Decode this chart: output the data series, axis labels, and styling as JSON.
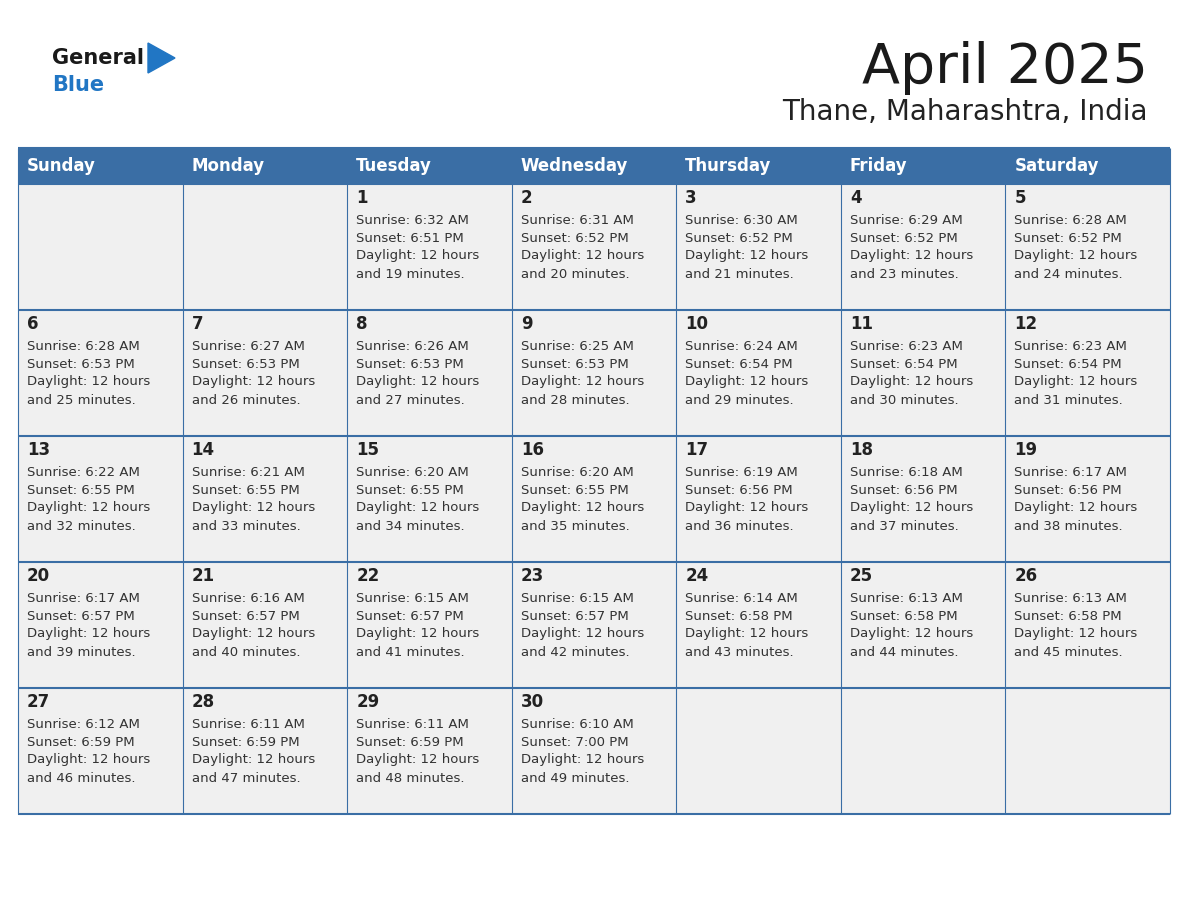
{
  "title": "April 2025",
  "subtitle": "Thane, Maharashtra, India",
  "days_of_week": [
    "Sunday",
    "Monday",
    "Tuesday",
    "Wednesday",
    "Thursday",
    "Friday",
    "Saturday"
  ],
  "header_bg_color": "#3A6EA5",
  "header_text_color": "#FFFFFF",
  "cell_bg_color": "#F0F0F0",
  "cell_bg_empty_color": "#ECECEC",
  "cell_border_color": "#3A6EA5",
  "day_number_color": "#222222",
  "day_info_color": "#333333",
  "title_color": "#1a1a1a",
  "subtitle_color": "#222222",
  "logo_general_color": "#1a1a1a",
  "logo_blue_color": "#2176C4",
  "bg_color": "#FFFFFF",
  "calendar_data": [
    [
      {
        "day": "",
        "sunrise": "",
        "sunset": "",
        "daylight": ""
      },
      {
        "day": "",
        "sunrise": "",
        "sunset": "",
        "daylight": ""
      },
      {
        "day": "1",
        "sunrise": "6:32 AM",
        "sunset": "6:51 PM",
        "daylight": "12 hours and 19 minutes."
      },
      {
        "day": "2",
        "sunrise": "6:31 AM",
        "sunset": "6:52 PM",
        "daylight": "12 hours and 20 minutes."
      },
      {
        "day": "3",
        "sunrise": "6:30 AM",
        "sunset": "6:52 PM",
        "daylight": "12 hours and 21 minutes."
      },
      {
        "day": "4",
        "sunrise": "6:29 AM",
        "sunset": "6:52 PM",
        "daylight": "12 hours and 23 minutes."
      },
      {
        "day": "5",
        "sunrise": "6:28 AM",
        "sunset": "6:52 PM",
        "daylight": "12 hours and 24 minutes."
      }
    ],
    [
      {
        "day": "6",
        "sunrise": "6:28 AM",
        "sunset": "6:53 PM",
        "daylight": "12 hours and 25 minutes."
      },
      {
        "day": "7",
        "sunrise": "6:27 AM",
        "sunset": "6:53 PM",
        "daylight": "12 hours and 26 minutes."
      },
      {
        "day": "8",
        "sunrise": "6:26 AM",
        "sunset": "6:53 PM",
        "daylight": "12 hours and 27 minutes."
      },
      {
        "day": "9",
        "sunrise": "6:25 AM",
        "sunset": "6:53 PM",
        "daylight": "12 hours and 28 minutes."
      },
      {
        "day": "10",
        "sunrise": "6:24 AM",
        "sunset": "6:54 PM",
        "daylight": "12 hours and 29 minutes."
      },
      {
        "day": "11",
        "sunrise": "6:23 AM",
        "sunset": "6:54 PM",
        "daylight": "12 hours and 30 minutes."
      },
      {
        "day": "12",
        "sunrise": "6:23 AM",
        "sunset": "6:54 PM",
        "daylight": "12 hours and 31 minutes."
      }
    ],
    [
      {
        "day": "13",
        "sunrise": "6:22 AM",
        "sunset": "6:55 PM",
        "daylight": "12 hours and 32 minutes."
      },
      {
        "day": "14",
        "sunrise": "6:21 AM",
        "sunset": "6:55 PM",
        "daylight": "12 hours and 33 minutes."
      },
      {
        "day": "15",
        "sunrise": "6:20 AM",
        "sunset": "6:55 PM",
        "daylight": "12 hours and 34 minutes."
      },
      {
        "day": "16",
        "sunrise": "6:20 AM",
        "sunset": "6:55 PM",
        "daylight": "12 hours and 35 minutes."
      },
      {
        "day": "17",
        "sunrise": "6:19 AM",
        "sunset": "6:56 PM",
        "daylight": "12 hours and 36 minutes."
      },
      {
        "day": "18",
        "sunrise": "6:18 AM",
        "sunset": "6:56 PM",
        "daylight": "12 hours and 37 minutes."
      },
      {
        "day": "19",
        "sunrise": "6:17 AM",
        "sunset": "6:56 PM",
        "daylight": "12 hours and 38 minutes."
      }
    ],
    [
      {
        "day": "20",
        "sunrise": "6:17 AM",
        "sunset": "6:57 PM",
        "daylight": "12 hours and 39 minutes."
      },
      {
        "day": "21",
        "sunrise": "6:16 AM",
        "sunset": "6:57 PM",
        "daylight": "12 hours and 40 minutes."
      },
      {
        "day": "22",
        "sunrise": "6:15 AM",
        "sunset": "6:57 PM",
        "daylight": "12 hours and 41 minutes."
      },
      {
        "day": "23",
        "sunrise": "6:15 AM",
        "sunset": "6:57 PM",
        "daylight": "12 hours and 42 minutes."
      },
      {
        "day": "24",
        "sunrise": "6:14 AM",
        "sunset": "6:58 PM",
        "daylight": "12 hours and 43 minutes."
      },
      {
        "day": "25",
        "sunrise": "6:13 AM",
        "sunset": "6:58 PM",
        "daylight": "12 hours and 44 minutes."
      },
      {
        "day": "26",
        "sunrise": "6:13 AM",
        "sunset": "6:58 PM",
        "daylight": "12 hours and 45 minutes."
      }
    ],
    [
      {
        "day": "27",
        "sunrise": "6:12 AM",
        "sunset": "6:59 PM",
        "daylight": "12 hours and 46 minutes."
      },
      {
        "day": "28",
        "sunrise": "6:11 AM",
        "sunset": "6:59 PM",
        "daylight": "12 hours and 47 minutes."
      },
      {
        "day": "29",
        "sunrise": "6:11 AM",
        "sunset": "6:59 PM",
        "daylight": "12 hours and 48 minutes."
      },
      {
        "day": "30",
        "sunrise": "6:10 AM",
        "sunset": "7:00 PM",
        "daylight": "12 hours and 49 minutes."
      },
      {
        "day": "",
        "sunrise": "",
        "sunset": "",
        "daylight": ""
      },
      {
        "day": "",
        "sunrise": "",
        "sunset": "",
        "daylight": ""
      },
      {
        "day": "",
        "sunrise": "",
        "sunset": "",
        "daylight": ""
      }
    ]
  ]
}
